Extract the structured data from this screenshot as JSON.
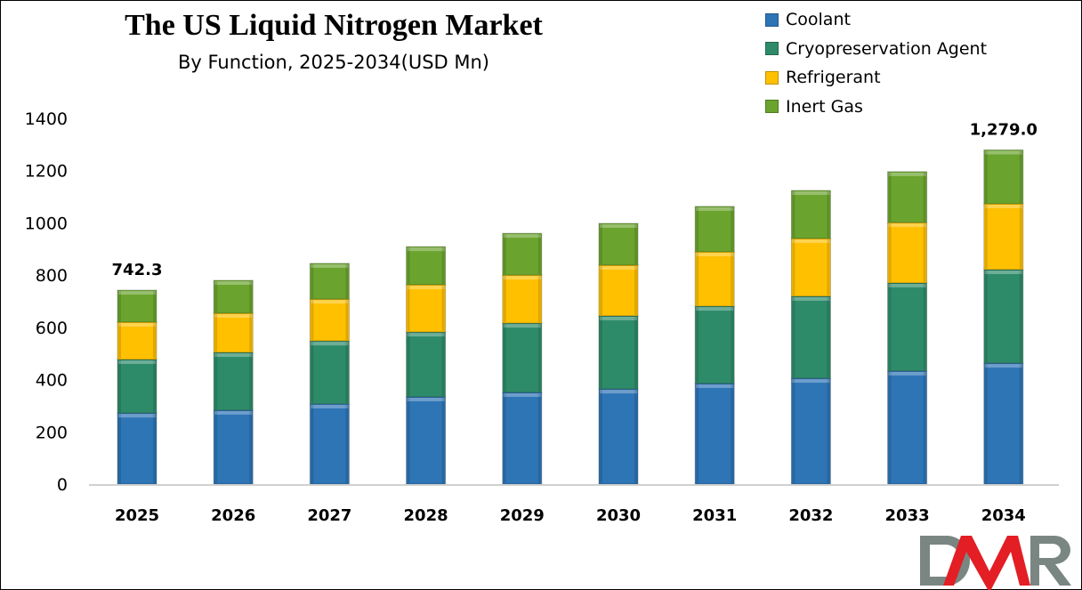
{
  "chart_data": {
    "type": "bar",
    "stacked": true,
    "title": "The US Liquid Nitrogen Market",
    "subtitle": "By Function, 2025-2034(USD Mn)",
    "categories": [
      "2025",
      "2026",
      "2027",
      "2028",
      "2029",
      "2030",
      "2031",
      "2032",
      "2033",
      "2034"
    ],
    "series": [
      {
        "name": "Coolant",
        "color": "#2E75B6",
        "values": [
          272,
          283,
          307,
          334,
          351,
          364,
          385,
          405,
          433,
          463
        ]
      },
      {
        "name": "Cryopreservation Agent",
        "color": "#2E8B6A",
        "values": [
          205,
          221,
          241,
          248,
          265,
          280,
          296,
          314,
          337,
          358
        ]
      },
      {
        "name": "Refrigerant",
        "color": "#FFC000",
        "values": [
          143,
          150,
          160,
          181,
          184,
          194,
          208,
          221,
          231,
          252
        ]
      },
      {
        "name": "Inert Gas",
        "color": "#6AA42E",
        "values": [
          122.3,
          126,
          137,
          146,
          160,
          160,
          174,
          184,
          195,
          206
        ]
      }
    ],
    "data_labels": [
      {
        "category": "2025",
        "text": "742.3"
      },
      {
        "category": "2034",
        "text": "1,279.0"
      }
    ],
    "yticks": [
      "0",
      "200",
      "400",
      "600",
      "800",
      "1000",
      "1200",
      "1400"
    ],
    "ylim": [
      0,
      1400
    ],
    "grid": false,
    "legend_position": "top-right",
    "xlabel": "",
    "ylabel": ""
  },
  "logo": {
    "text": "DMR"
  }
}
